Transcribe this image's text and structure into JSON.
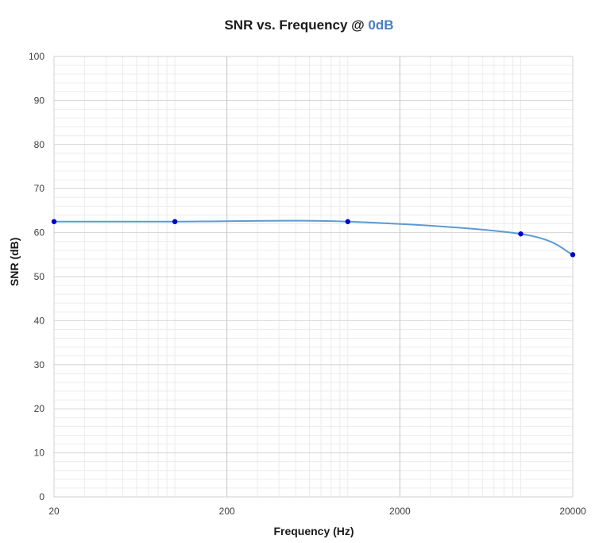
{
  "chart_data": {
    "type": "line",
    "title": "SNR vs. Frequency @ ",
    "title_accent": "0dB",
    "xlabel": "Frequency (Hz)",
    "ylabel": "SNR (dB)",
    "x_scale": "log",
    "xlim": [
      20,
      20000
    ],
    "ylim": [
      0,
      100
    ],
    "x_ticks": [
      "20",
      "200",
      "2000",
      "20000"
    ],
    "y_ticks": [
      "0",
      "10",
      "20",
      "30",
      "40",
      "50",
      "60",
      "70",
      "80",
      "90",
      "100"
    ],
    "grid": true,
    "legend": "none",
    "series": [
      {
        "color": "#5b9bd5",
        "marker_color": "#0000cc",
        "x": [
          20,
          100,
          1000,
          10000,
          20000
        ],
        "y": [
          62.5,
          62.5,
          62.5,
          59.7,
          55.0
        ]
      }
    ]
  }
}
